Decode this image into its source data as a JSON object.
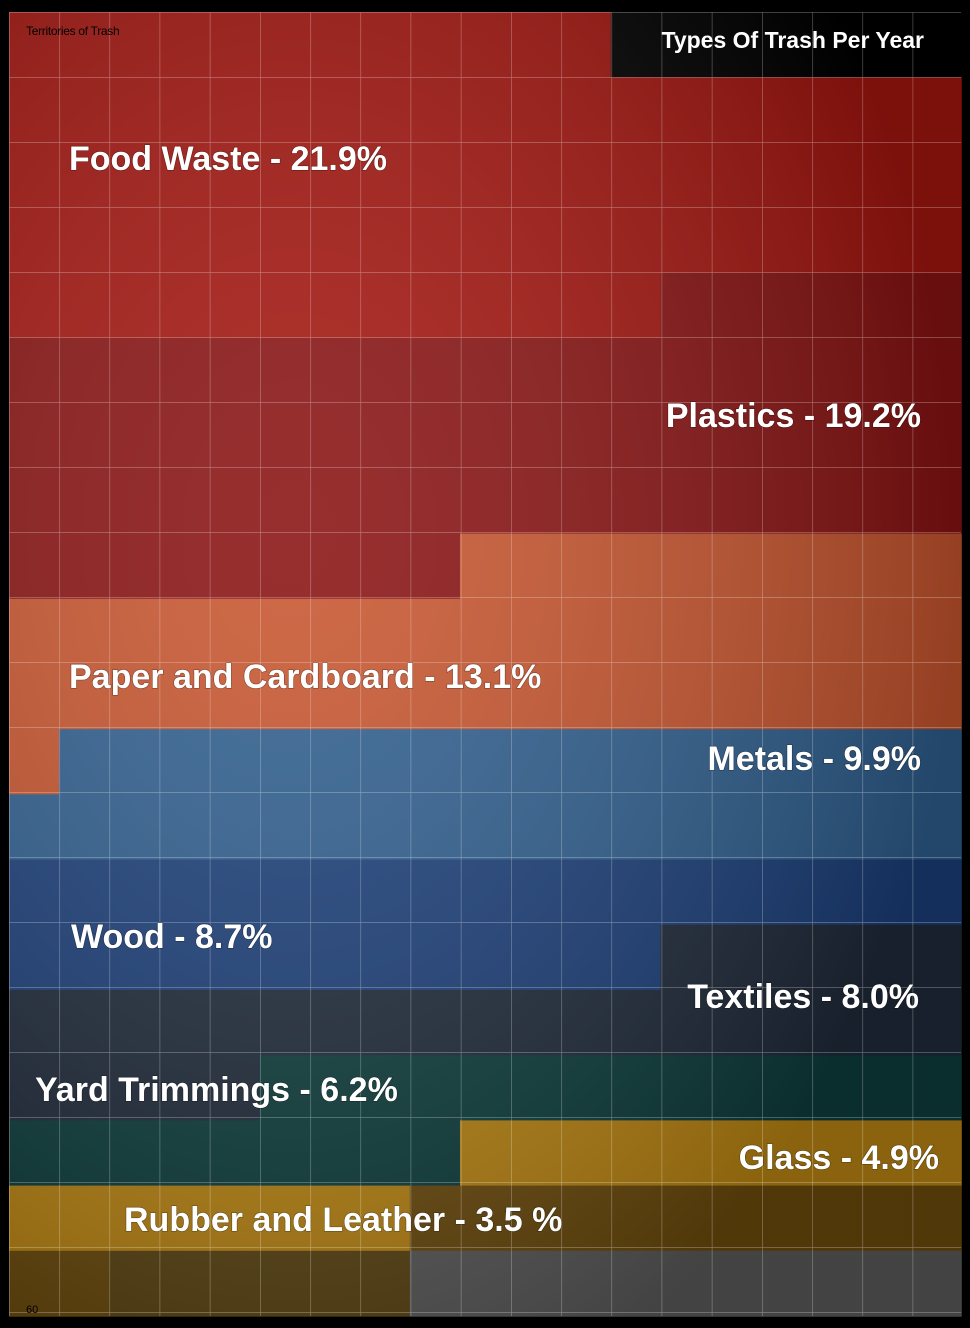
{
  "page": {
    "header": "Territories of Trash",
    "page_number": "60"
  },
  "chart_data": {
    "type": "bar",
    "title": "Types Of Trash Per Year",
    "orientation": "stacked-area",
    "categories": [
      "Food Waste",
      "Plastics",
      "Paper and Cardboard",
      "Metals",
      "Wood",
      "Textiles",
      "Yard Trimmings",
      "Glass",
      "Rubber and Leather"
    ],
    "values": [
      21.9,
      19.2,
      13.1,
      9.9,
      8.7,
      8.0,
      6.2,
      4.9,
      3.5
    ],
    "labels": [
      "Food Waste - 21.9%",
      "Plastics - 19.2%",
      "Paper and Cardboard - 13.1%",
      "Metals - 9.9%",
      "Wood - 8.7%",
      "Textiles - 8.0%",
      "Yard Trimmings - 6.2%",
      "Glass - 4.9%",
      "Rubber and Leather - 3.5 %"
    ],
    "unit": "%",
    "colors": [
      "#a5150f",
      "#8a1212",
      "#c8552e",
      "#2f5f8f",
      "#1b3f7a",
      "#1f2a3a",
      "#0d3c3c",
      "#b98412",
      "#6b4a0c"
    ],
    "remainder_color": "#5a4412",
    "gray_color": "#5a5a5a",
    "grid": true
  }
}
